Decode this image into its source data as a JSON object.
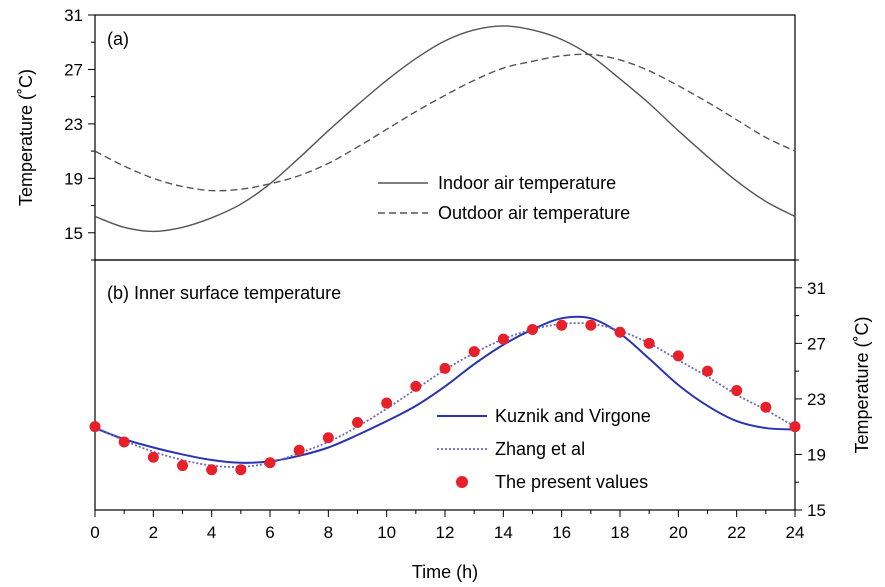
{
  "chart_data": [
    {
      "type": "line",
      "panel_label": "(a)",
      "ylabel": "Temperature (˚C)",
      "xlim": [
        0,
        24
      ],
      "ylim": [
        13,
        31
      ],
      "yticks": [
        "15",
        "19",
        "23",
        "27",
        "31"
      ],
      "legend": "center-right",
      "grid": false,
      "series": [
        {
          "name": "Indoor air temperature",
          "style": "solid",
          "color": "#555555",
          "x": [
            0,
            1,
            2,
            3,
            4,
            5,
            6,
            7,
            8,
            9,
            10,
            11,
            12,
            13,
            14,
            15,
            16,
            17,
            18,
            19,
            20,
            21,
            22,
            23,
            24
          ],
          "y": [
            16.2,
            15.4,
            15.1,
            15.4,
            16.1,
            17.1,
            18.6,
            20.5,
            22.5,
            24.4,
            26.2,
            27.8,
            29.1,
            29.9,
            30.2,
            29.9,
            29.2,
            28.0,
            26.3,
            24.5,
            22.5,
            20.6,
            18.8,
            17.3,
            16.2
          ]
        },
        {
          "name": "Outdoor air temperature",
          "style": "dashed",
          "color": "#555555",
          "x": [
            0,
            1,
            2,
            3,
            4,
            5,
            6,
            7,
            8,
            9,
            10,
            11,
            12,
            13,
            14,
            15,
            16,
            17,
            18,
            19,
            20,
            21,
            22,
            23,
            24
          ],
          "y": [
            21.0,
            19.9,
            19.0,
            18.4,
            18.1,
            18.2,
            18.6,
            19.2,
            20.1,
            21.3,
            22.6,
            23.9,
            25.1,
            26.2,
            27.1,
            27.6,
            28.0,
            28.1,
            27.7,
            26.9,
            25.8,
            24.6,
            23.3,
            22.0,
            21.0
          ]
        }
      ]
    },
    {
      "type": "line",
      "panel_label": "(b) Inner surface temperature",
      "ylabel": "Temperature (˚C)",
      "xlabel": "Time (h)",
      "xlim": [
        0,
        24
      ],
      "ylim": [
        15,
        33
      ],
      "xticks": [
        "0",
        "2",
        "4",
        "6",
        "8",
        "10",
        "12",
        "14",
        "16",
        "18",
        "20",
        "22",
        "24"
      ],
      "yticks": [
        "15",
        "19",
        "23",
        "27",
        "31"
      ],
      "legend": "center-right",
      "grid": false,
      "series": [
        {
          "name": "Kuznik and Virgone",
          "style": "solid",
          "color": "#2a34b0",
          "x": [
            0,
            1,
            2,
            3,
            4,
            5,
            6,
            7,
            8,
            9,
            10,
            11,
            12,
            13,
            14,
            15,
            16,
            17,
            18,
            19,
            20,
            21,
            22,
            23,
            24
          ],
          "y": [
            20.9,
            20.1,
            19.5,
            19.0,
            18.6,
            18.4,
            18.5,
            18.9,
            19.5,
            20.4,
            21.4,
            22.5,
            23.9,
            25.5,
            26.9,
            28.0,
            28.8,
            28.8,
            27.7,
            25.9,
            24.0,
            22.5,
            21.4,
            20.9,
            20.8
          ]
        },
        {
          "name": "Zhang et al",
          "style": "dotted",
          "color": "#6a6ab8",
          "x": [
            0,
            1,
            2,
            3,
            4,
            5,
            6,
            7,
            8,
            9,
            10,
            11,
            12,
            13,
            14,
            15,
            16,
            17,
            18,
            19,
            20,
            21,
            22,
            23,
            24
          ],
          "y": [
            21.0,
            20.0,
            19.2,
            18.6,
            18.2,
            18.1,
            18.4,
            19.1,
            19.9,
            21.0,
            22.3,
            23.7,
            25.1,
            26.3,
            27.3,
            28.0,
            28.4,
            28.4,
            27.9,
            27.0,
            25.8,
            24.6,
            23.3,
            22.2,
            21.0
          ]
        },
        {
          "name": "The present values",
          "style": "markers",
          "color": "#e8202a",
          "x": [
            0,
            1,
            2,
            3,
            4,
            5,
            6,
            7,
            8,
            9,
            10,
            11,
            12,
            13,
            14,
            15,
            16,
            17,
            18,
            19,
            20,
            21,
            22,
            23,
            24
          ],
          "y": [
            21.0,
            19.9,
            18.8,
            18.2,
            17.9,
            17.9,
            18.4,
            19.3,
            20.2,
            21.3,
            22.7,
            23.9,
            25.2,
            26.4,
            27.3,
            28.0,
            28.3,
            28.3,
            27.8,
            27.0,
            26.1,
            25.0,
            23.6,
            22.4,
            21.0
          ]
        }
      ]
    }
  ]
}
